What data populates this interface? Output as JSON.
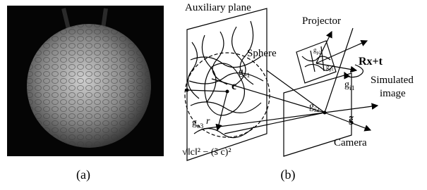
{
  "panel_a": {
    "caption": "(a)"
  },
  "panel_b": {
    "caption": "(b)",
    "auxiliary_plane": "Auxiliary plane",
    "projector": "Projector",
    "sphere": "Sphere",
    "center": "c",
    "radius": "r",
    "transform": "Rx+t",
    "simulated_image": [
      "Simulated",
      "image"
    ],
    "camera": "Camera",
    "image_point": "s̃",
    "distance_formula": "√‖c‖² − (s̃ c)²",
    "points": [
      {
        "base": "g",
        "sub": "e1"
      },
      {
        "base": "g",
        "sub": "e3"
      },
      {
        "base": "g",
        "sub": "i1"
      },
      {
        "base": "g",
        "sub": "i2"
      },
      {
        "base": "g",
        "sub": "p2"
      },
      {
        "base": "g",
        "sub": "p1"
      }
    ]
  }
}
